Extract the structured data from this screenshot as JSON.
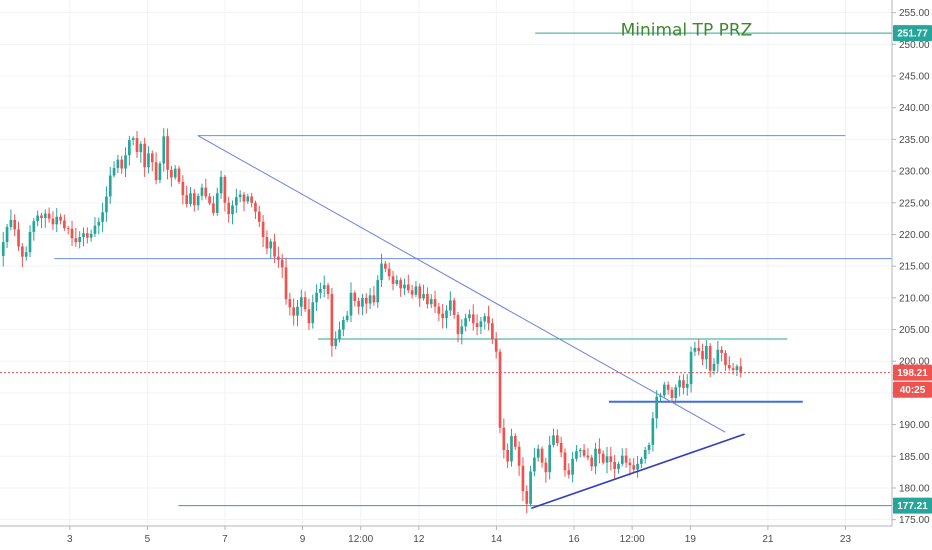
{
  "chart_data": {
    "type": "candlestick",
    "y_axis": {
      "position": "right",
      "range": [
        174,
        257
      ],
      "ticks": [
        175,
        180,
        185,
        190,
        195,
        200,
        205,
        210,
        215,
        220,
        225,
        230,
        235,
        240,
        245,
        250,
        255
      ],
      "tick_labels": [
        "175.00",
        "180.00",
        "185.00",
        "190.00",
        "195.00",
        "200.00",
        "205.00",
        "210.00",
        "215.00",
        "220.00",
        "225.00",
        "230.00",
        "235.00",
        "240.00",
        "245.00",
        "250.00",
        "255.00"
      ]
    },
    "x_axis": {
      "range": [
        1.2,
        24.2
      ],
      "ticks": [
        3,
        5,
        7,
        9,
        10.5,
        12,
        14,
        16,
        17.5,
        19,
        21,
        23
      ],
      "tick_labels": [
        "3",
        "5",
        "7",
        "9",
        "12:00",
        "12",
        "14",
        "16",
        "12:00",
        "19",
        "21",
        "23"
      ]
    },
    "price_badges": [
      {
        "label": "251.77",
        "value": 251.77,
        "color": "#26a69a"
      },
      {
        "label": "198.21",
        "value": 198.21,
        "color": "#ef5350"
      },
      {
        "label": "40:25",
        "value": 195.5,
        "color": "#ef5350"
      },
      {
        "label": "177.21",
        "value": 177.21,
        "color": "#26a69a"
      }
    ],
    "horizontal_lines": [
      {
        "y": 251.77,
        "x_start": 15.0,
        "x_end": 24.2,
        "color": "#26a69a"
      },
      {
        "y": 235.6,
        "x_start": 6.3,
        "x_end": 23.0,
        "color": "#6b8ee6"
      },
      {
        "y": 216.2,
        "x_start": 2.6,
        "x_end": 24.2,
        "color": "#6b8ee6"
      },
      {
        "y": 203.5,
        "x_start": 9.4,
        "x_end": 21.5,
        "color": "#26a69a"
      },
      {
        "y": 193.6,
        "x_start": 16.9,
        "x_end": 21.9,
        "color": "#3f6fe0"
      },
      {
        "y": 177.21,
        "x_start": 5.8,
        "x_end": 24.2,
        "color": "#26a69a"
      }
    ],
    "trend_lines": [
      {
        "x1": 6.3,
        "y1": 235.6,
        "x2": 19.9,
        "y2": 188.8,
        "color": "#6b7fe0"
      },
      {
        "x1": 14.9,
        "y1": 176.8,
        "x2": 20.4,
        "y2": 188.5,
        "color": "#2e3fbf"
      }
    ],
    "current_price_line": {
      "y": 198.21,
      "color": "#ef5350"
    },
    "annotations": [
      {
        "text": "Minimal TP PRZ",
        "x": 18.9,
        "y": 251.4,
        "color": "#3d8a2e"
      }
    ],
    "candles_close": [
      213.2,
      212.8,
      213.5,
      212.6,
      213.8,
      214.5,
      215.2,
      216.4,
      217.6,
      217.0,
      216.6,
      218.8,
      221.2,
      222.3,
      220.8,
      218.1,
      216.5,
      217.2,
      220.4,
      222.1,
      223.0,
      222.6,
      223.3,
      222.5,
      221.6,
      222.8,
      222.2,
      221.0,
      220.9,
      219.4,
      218.8,
      219.6,
      220.2,
      219.5,
      220.1,
      221.4,
      222.0,
      223.5,
      226.0,
      229.3,
      230.5,
      231.8,
      230.4,
      232.5,
      234.9,
      235.2,
      233.0,
      234.3,
      230.6,
      232.8,
      231.4,
      228.6,
      231.2,
      235.5,
      230.2,
      229.0,
      230.4,
      228.3,
      226.2,
      224.8,
      226.5,
      224.6,
      226.1,
      227.4,
      226.0,
      224.9,
      223.4,
      226.5,
      229.1,
      225.0,
      223.2,
      224.6,
      225.9,
      226.3,
      225.2,
      226.0,
      225.0,
      223.6,
      222.0,
      219.6,
      217.8,
      218.9,
      216.5,
      216.0,
      214.8,
      209.8,
      208.5,
      207.2,
      208.6,
      210.1,
      208.2,
      206.0,
      209.3,
      210.8,
      211.4,
      212.0,
      210.6,
      202.4,
      203.5,
      205.0,
      206.5,
      207.2,
      210.8,
      209.5,
      208.6,
      210.0,
      209.1,
      210.4,
      209.3,
      212.8,
      215.4,
      214.6,
      213.4,
      212.2,
      212.8,
      211.5,
      212.1,
      211.2,
      210.5,
      211.8,
      209.9,
      210.6,
      209.0,
      209.8,
      208.6,
      207.5,
      206.8,
      208.0,
      209.6,
      207.3,
      204.3,
      205.5,
      206.8,
      207.4,
      206.0,
      205.4,
      206.3,
      207.1,
      206.0,
      203.5,
      201.5,
      189.5,
      186.0,
      184.2,
      188.2,
      186.5,
      183.5,
      179.5,
      177.5,
      182.6,
      184.8,
      186.2,
      184.0,
      182.5,
      186.8,
      188.3,
      187.1,
      185.6,
      182.8,
      182.1,
      184.6,
      185.8,
      186.0,
      185.1,
      184.8,
      183.4,
      186.2,
      185.4,
      184.0,
      185.0,
      184.1,
      183.0,
      183.8,
      185.1,
      184.0,
      183.6,
      182.9,
      183.8,
      184.6,
      186.0,
      186.8,
      191.0,
      194.4,
      194.6,
      196.3,
      195.5,
      194.2,
      195.9,
      197.0,
      195.8,
      196.4,
      201.5,
      202.1,
      201.6,
      200.3,
      202.4,
      198.5,
      199.6,
      201.8,
      201.3,
      199.4,
      198.9,
      198.6,
      199.2,
      198.21
    ]
  }
}
